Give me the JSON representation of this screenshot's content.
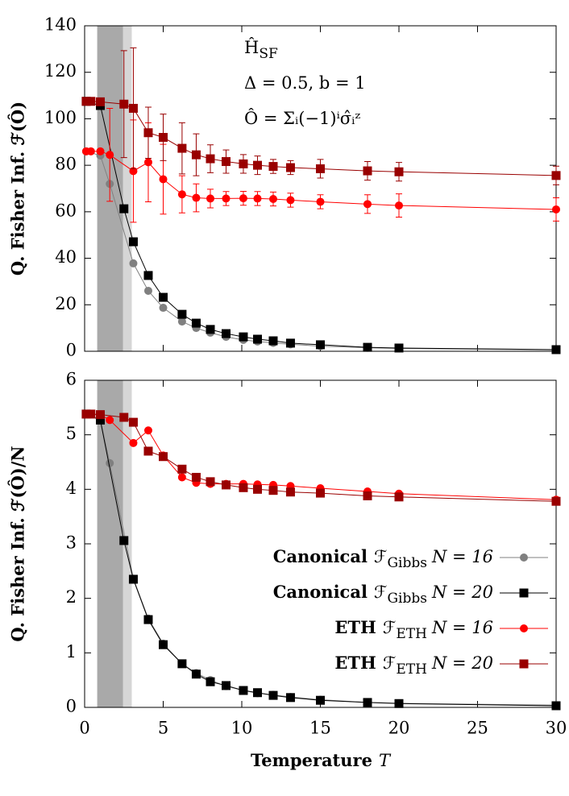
{
  "chart_data": [
    {
      "type": "line",
      "ylabel": "Q. Fisher Inf. ℱ(Ô)",
      "annotations": [
        {
          "text": "Ĥ",
          "sub": "SF"
        },
        {
          "text": "Δ = 0.5, b = 1"
        },
        {
          "text": "Ô = Σᵢ(−1)ⁱσ̂ᵢᶻ"
        }
      ],
      "xlim": [
        0,
        30
      ],
      "xticks": [
        0,
        5,
        10,
        15,
        20,
        25,
        30
      ],
      "show_xtick_labels": false,
      "ylim": [
        0,
        140
      ],
      "yticks": [
        0,
        20,
        40,
        60,
        80,
        100,
        120,
        140
      ],
      "shaded": [
        {
          "x": [
            0.8,
            2.45
          ],
          "color": "#a9a9a9"
        },
        {
          "x": [
            2.45,
            3.0
          ],
          "color": "#d6d6d6"
        }
      ],
      "series": [
        {
          "color": "#808080",
          "marker": "circle",
          "x": [
            0.1,
            1.0,
            1.6,
            3.1,
            4.05,
            5.0,
            6.2,
            7.1,
            8.0,
            9.0,
            10.1,
            11.0,
            12.0,
            13.1,
            15.0,
            18.0,
            20.0,
            30.0
          ],
          "values": [
            86,
            84.2,
            72,
            37.8,
            26,
            18.7,
            12.8,
            10,
            8,
            6.2,
            4.9,
            4.2,
            3.6,
            3,
            2.2,
            1.5,
            1.2,
            0.6
          ]
        },
        {
          "color": "#000000",
          "marker": "square",
          "x": [
            0.1,
            1.0,
            2.5,
            3.1,
            4.05,
            5.0,
            6.2,
            7.1,
            8.0,
            9.0,
            10.1,
            11.0,
            12.0,
            13.1,
            15.0,
            18.0,
            20.0,
            30.0
          ],
          "values": [
            107.5,
            105.7,
            61.3,
            47.1,
            32.6,
            23.2,
            15.9,
            12.1,
            9.4,
            7.6,
            6.2,
            5.2,
            4.5,
            3.5,
            2.8,
            1.7,
            1.4,
            0.7
          ]
        },
        {
          "color": "#ff0000",
          "marker": "circle",
          "x": [
            0.1,
            0.4,
            1.0,
            1.6,
            3.1,
            4.05,
            5.0,
            6.2,
            7.1,
            8.0,
            9.0,
            10.1,
            11.0,
            12.0,
            13.1,
            15.0,
            18.0,
            20.0,
            30.0
          ],
          "values": [
            86,
            86,
            86,
            84.5,
            77.5,
            81.3,
            74,
            67.5,
            66,
            65.7,
            65.7,
            65.8,
            65.7,
            65.5,
            65,
            64.3,
            63.3,
            62.7,
            61
          ],
          "errors": [
            0,
            0,
            0,
            20,
            22,
            17,
            15,
            8,
            6,
            4,
            3,
            3,
            3,
            3,
            3,
            3,
            4,
            5,
            5
          ]
        },
        {
          "color": "#990000",
          "marker": "square",
          "x": [
            0.1,
            0.4,
            1.0,
            2.5,
            3.1,
            4.05,
            5.0,
            6.2,
            7.1,
            8.0,
            9.0,
            10.1,
            11.0,
            12.0,
            13.1,
            15.0,
            18.0,
            20.0,
            30.0
          ],
          "values": [
            107.5,
            107.5,
            107.3,
            106.3,
            104.5,
            94,
            92,
            87.3,
            84.5,
            82.8,
            81.6,
            80.6,
            80,
            79.5,
            79,
            78.5,
            77.6,
            77.2,
            75.6
          ],
          "errors": [
            0,
            0,
            0,
            23,
            26,
            11,
            10,
            11,
            9,
            6,
            5,
            4,
            4,
            3,
            3,
            4,
            4,
            4,
            4
          ]
        }
      ]
    },
    {
      "type": "line",
      "ylabel": "Q. Fisher Inf. ℱ(Ô)/N",
      "xlabel": "Temperature",
      "xlabel_var": "T",
      "xlim": [
        0,
        30
      ],
      "xticks": [
        0,
        5,
        10,
        15,
        20,
        25,
        30
      ],
      "show_xtick_labels": true,
      "ylim": [
        0,
        6
      ],
      "yticks": [
        0,
        1,
        2,
        3,
        4,
        5,
        6
      ],
      "legend": "right",
      "shaded": [
        {
          "x": [
            0.8,
            2.45
          ],
          "color": "#a9a9a9"
        },
        {
          "x": [
            2.45,
            3.0
          ],
          "color": "#d6d6d6"
        }
      ],
      "series": [
        {
          "name": "Canonical",
          "estimator": "ℱ",
          "estimator_sub": "Gibbs",
          "size": "N = 16",
          "color": "#808080",
          "marker": "circle",
          "x": [
            0.1,
            1.0,
            1.6,
            3.1,
            4.05,
            5.0,
            6.2,
            7.1,
            8.0,
            9.0,
            10.1,
            11.0,
            12.0,
            13.1,
            15.0,
            18.0,
            20.0,
            30.0
          ],
          "values": [
            5.38,
            5.27,
            4.48,
            2.36,
            1.63,
            1.17,
            0.8,
            0.63,
            0.5,
            0.39,
            0.31,
            0.26,
            0.23,
            0.19,
            0.14,
            0.09,
            0.075,
            0.04
          ]
        },
        {
          "name": "Canonical",
          "estimator": "ℱ",
          "estimator_sub": "Gibbs",
          "size": "N = 20",
          "color": "#000000",
          "marker": "square",
          "x": [
            0.1,
            1.0,
            2.5,
            3.1,
            4.05,
            5.0,
            6.2,
            7.1,
            8.0,
            9.0,
            10.1,
            11.0,
            12.0,
            13.1,
            15.0,
            18.0,
            20.0,
            30.0
          ],
          "values": [
            5.38,
            5.27,
            3.06,
            2.35,
            1.61,
            1.15,
            0.8,
            0.61,
            0.47,
            0.4,
            0.31,
            0.27,
            0.22,
            0.18,
            0.13,
            0.09,
            0.07,
            0.03
          ]
        },
        {
          "name": "ETH",
          "estimator": "ℱ",
          "estimator_sub": "ETH",
          "size": "N = 16",
          "color": "#ff0000",
          "marker": "circle",
          "x": [
            0.1,
            0.4,
            1.0,
            1.6,
            3.1,
            4.05,
            5.0,
            6.2,
            7.1,
            8.0,
            9.0,
            10.1,
            11.0,
            12.0,
            13.1,
            15.0,
            18.0,
            20.0,
            30.0
          ],
          "values": [
            5.38,
            5.38,
            5.37,
            5.27,
            4.85,
            5.08,
            4.62,
            4.22,
            4.12,
            4.1,
            4.1,
            4.1,
            4.09,
            4.08,
            4.06,
            4.02,
            3.96,
            3.92,
            3.81
          ]
        },
        {
          "name": "ETH",
          "estimator": "ℱ",
          "estimator_sub": "ETH",
          "size": "N = 20",
          "color": "#990000",
          "marker": "square",
          "x": [
            0.1,
            0.4,
            1.0,
            2.5,
            3.1,
            4.05,
            5.0,
            6.2,
            7.1,
            8.0,
            9.0,
            10.1,
            11.0,
            12.0,
            13.1,
            15.0,
            18.0,
            20.0,
            30.0
          ],
          "values": [
            5.38,
            5.38,
            5.37,
            5.32,
            5.23,
            4.7,
            4.6,
            4.37,
            4.22,
            4.14,
            4.08,
            4.03,
            4.0,
            3.98,
            3.95,
            3.93,
            3.88,
            3.86,
            3.78
          ]
        }
      ]
    }
  ]
}
